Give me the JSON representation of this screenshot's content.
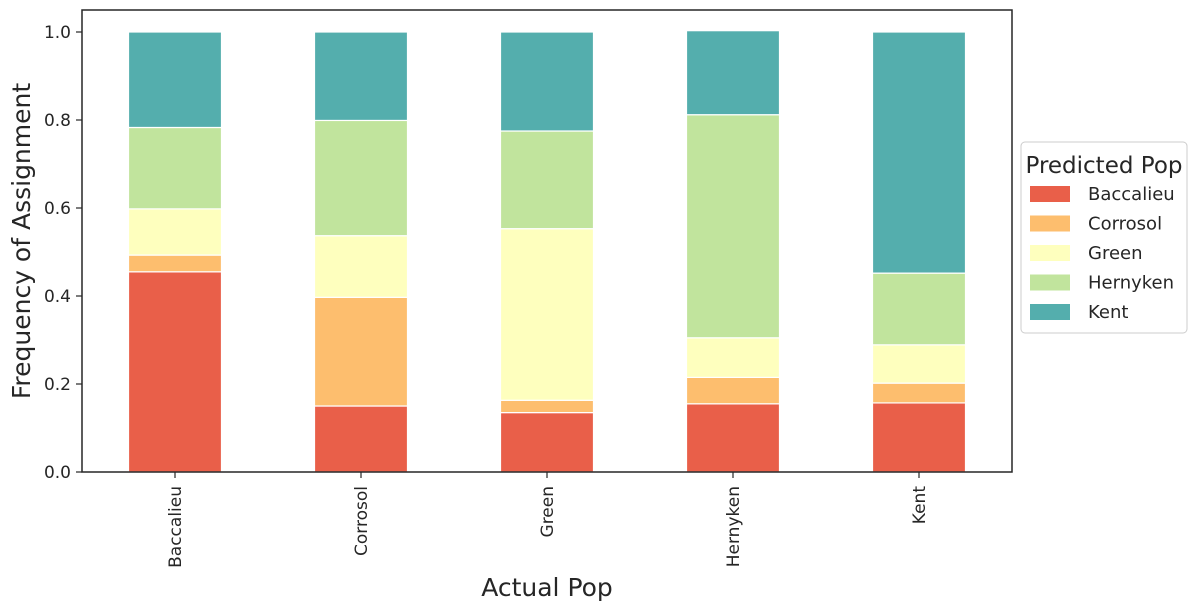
{
  "chart_data": {
    "type": "bar",
    "stacked": true,
    "title": "",
    "xlabel": "Actual Pop",
    "ylabel": "Frequency of Assignment",
    "categories": [
      "Baccalieu",
      "Corrosol",
      "Green",
      "Hernyken",
      "Kent"
    ],
    "ylim": [
      0,
      1.05
    ],
    "yticks": [
      "0.0",
      "0.2",
      "0.4",
      "0.6",
      "0.8",
      "1.0"
    ],
    "grid": false,
    "legend": {
      "title": "Predicted Pop",
      "placement": "right, outside plot"
    },
    "series": [
      {
        "name": "Baccalieu",
        "color": "#e95f49",
        "values": [
          0.455,
          0.15,
          0.135,
          0.155,
          0.157
        ]
      },
      {
        "name": "Corrosol",
        "color": "#fdbe6e",
        "values": [
          0.038,
          0.247,
          0.028,
          0.06,
          0.045
        ]
      },
      {
        "name": "Green",
        "color": "#feffbe",
        "values": [
          0.105,
          0.14,
          0.39,
          0.09,
          0.087
        ]
      },
      {
        "name": "Hernyken",
        "color": "#c1e49d",
        "values": [
          0.185,
          0.262,
          0.222,
          0.507,
          0.163
        ]
      },
      {
        "name": "Kent",
        "color": "#54aead",
        "values": [
          0.217,
          0.201,
          0.225,
          0.191,
          0.548
        ]
      }
    ]
  }
}
